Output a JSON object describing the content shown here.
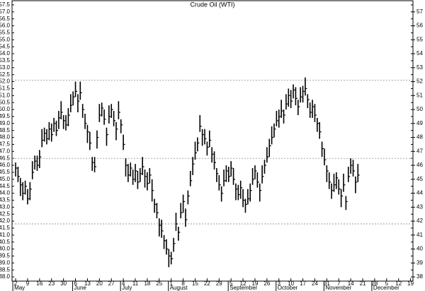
{
  "chart_data": {
    "type": "ohlc",
    "title": "Crude Oil (WTI)",
    "color": "#000000",
    "high": [
      46.2,
      45.9,
      45.1,
      44.8,
      44.9,
      44.3,
      44.8,
      46.3,
      46.7,
      46.7,
      47.1,
      48.6,
      48.7,
      48.6,
      49.1,
      49.0,
      49.4,
      49.2,
      49.9,
      50.6,
      49.6,
      49.6,
      50.1,
      51.1,
      51.3,
      52.0,
      51.1,
      52.0,
      50.4,
      49.7,
      48.9,
      48.4,
      46.6,
      46.6,
      48.5,
      50.4,
      50.5,
      50.0,
      48.7,
      50.3,
      50.4,
      49.9,
      49.1,
      50.6,
      49.3,
      48.2,
      46.5,
      46.1,
      46.2,
      45.7,
      46.1,
      45.6,
      45.8,
      46.6,
      45.7,
      45.5,
      45.8,
      45.0,
      43.6,
      43.3,
      42.2,
      42.1,
      41.0,
      40.7,
      40.0,
      39.8,
      40.8,
      42.6,
      41.6,
      43.3,
      43.9,
      42.9,
      44.2,
      45.6,
      46.6,
      47.7,
      48.0,
      49.6,
      48.6,
      48.6,
      47.7,
      48.5,
      47.3,
      47.0,
      45.8,
      45.3,
      44.5,
      45.7,
      46.0,
      45.9,
      46.3,
      45.8,
      44.7,
      44.6,
      44.9,
      44.3,
      43.6,
      44.3,
      44.7,
      45.8,
      46.0,
      45.5,
      44.7,
      46.0,
      46.4,
      47.3,
      47.9,
      48.8,
      49.0,
      49.9,
      50.0,
      50.7,
      50.0,
      51.1,
      51.5,
      51.4,
      51.8,
      51.6,
      50.7,
      51.6,
      51.7,
      52.3,
      51.1,
      50.5,
      50.7,
      50.4,
      49.4,
      49.1,
      47.7,
      47.2,
      46.0,
      45.5,
      44.7,
      45.4,
      45.5,
      45.0,
      44.3,
      45.4,
      43.8,
      45.9,
      46.5,
      46.4,
      45.2,
      46.1
    ],
    "low": [
      45.2,
      44.8,
      43.8,
      43.5,
      43.9,
      43.2,
      43.5,
      45.0,
      45.7,
      45.6,
      45.8,
      47.3,
      47.7,
      47.5,
      47.8,
      47.7,
      48.4,
      48.1,
      48.6,
      49.3,
      48.6,
      48.5,
      48.8,
      49.8,
      50.3,
      50.9,
      49.8,
      50.7,
      49.4,
      48.6,
      47.6,
      47.1,
      45.6,
      45.5,
      47.2,
      49.1,
      49.5,
      48.9,
      47.4,
      49.0,
      49.4,
      48.8,
      47.8,
      49.3,
      48.3,
      47.1,
      45.2,
      44.8,
      45.2,
      44.6,
      44.8,
      44.3,
      44.8,
      45.3,
      44.4,
      44.2,
      44.7,
      43.4,
      42.6,
      42.2,
      40.9,
      40.8,
      40.0,
      39.6,
      38.7,
      38.9,
      39.8,
      41.3,
      40.6,
      42.2,
      42.6,
      41.6,
      43.2,
      44.5,
      45.3,
      46.4,
      47.0,
      48.4,
      47.4,
      47.5,
      46.7,
      47.3,
      46.2,
      45.7,
      44.8,
      44.2,
      43.4,
      44.5,
      44.8,
      44.8,
      45.2,
      44.6,
      43.5,
      43.5,
      43.6,
      43.0,
      42.6,
      43.2,
      43.4,
      44.6,
      45.0,
      44.4,
      43.4,
      44.7,
      45.4,
      46.2,
      46.6,
      47.5,
      48.0,
      48.8,
      48.7,
      49.4,
      49.0,
      50.0,
      50.2,
      50.1,
      50.8,
      50.3,
      49.6,
      50.5,
      50.5,
      51.0,
      50.1,
      49.4,
      49.4,
      49.1,
      48.4,
      47.9,
      46.6,
      46.0,
      44.8,
      44.3,
      43.6,
      44.1,
      44.3,
      43.9,
      43.0,
      44.1,
      42.8,
      44.8,
      45.4,
      45.2,
      44.0,
      44.8
    ],
    "close": [
      45.8,
      45.2,
      44.6,
      44.0,
      44.5,
      43.6,
      44.3,
      45.5,
      46.3,
      46.0,
      46.6,
      47.8,
      48.3,
      47.9,
      48.6,
      48.2,
      49.0,
      48.5,
      49.4,
      49.8,
      49.2,
      48.9,
      49.6,
      50.3,
      50.9,
      51.3,
      50.6,
      51.2,
      50.0,
      49.0,
      48.4,
      47.6,
      46.2,
      45.9,
      48.0,
      49.6,
      50.1,
      49.3,
      48.2,
      49.5,
      50.0,
      49.2,
      48.6,
      49.8,
      48.9,
      47.5,
      46.0,
      45.3,
      45.8,
      45.0,
      45.6,
      44.8,
      45.4,
      45.9,
      45.2,
      44.7,
      45.3,
      44.2,
      43.2,
      42.6,
      41.7,
      41.3,
      40.6,
      40.0,
      39.5,
      39.3,
      40.4,
      41.8,
      41.2,
      42.6,
      43.4,
      42.1,
      43.8,
      44.9,
      46.1,
      46.9,
      47.6,
      48.8,
      48.2,
      47.9,
      47.3,
      47.8,
      46.8,
      46.2,
      45.4,
      44.6,
      44.0,
      44.9,
      45.6,
      45.2,
      45.8,
      45.0,
      44.3,
      43.9,
      44.4,
      43.5,
      43.2,
      43.6,
      44.2,
      45.0,
      45.6,
      44.8,
      44.2,
      45.2,
      46.0,
      46.6,
      47.4,
      48.0,
      48.6,
      49.2,
      49.5,
      49.9,
      49.6,
      50.4,
      51.0,
      50.6,
      51.4,
      50.8,
      50.2,
      50.9,
      51.3,
      51.5,
      50.7,
      49.8,
      50.2,
      49.6,
      49.0,
      48.4,
      47.2,
      46.4,
      45.6,
      44.8,
      44.2,
      44.6,
      45.1,
      44.3,
      43.8,
      44.6,
      43.4,
      45.2,
      46.0,
      45.6,
      44.8,
      45.3
    ],
    "reference_lines": [
      52.1,
      46.5,
      41.8
    ],
    "xlim": [
      -1.5,
      166
    ],
    "xticks": [
      {
        "value": 0,
        "label": "2"
      },
      {
        "value": 5,
        "label": "9"
      },
      {
        "value": 10,
        "label": "16"
      },
      {
        "value": 15,
        "label": "23"
      },
      {
        "value": 20,
        "label": "30"
      },
      {
        "value": 25,
        "label": "6"
      },
      {
        "value": 30,
        "label": "13"
      },
      {
        "value": 35,
        "label": "20"
      },
      {
        "value": 40,
        "label": "27"
      },
      {
        "value": 45,
        "label": "4"
      },
      {
        "value": 50,
        "label": "11"
      },
      {
        "value": 55,
        "label": "18"
      },
      {
        "value": 60,
        "label": "25"
      },
      {
        "value": 65,
        "label": "1"
      },
      {
        "value": 70,
        "label": "8"
      },
      {
        "value": 75,
        "label": "15"
      },
      {
        "value": 80,
        "label": "22"
      },
      {
        "value": 85,
        "label": "29"
      },
      {
        "value": 90,
        "label": "5"
      },
      {
        "value": 95,
        "label": "12"
      },
      {
        "value": 100,
        "label": "19"
      },
      {
        "value": 105,
        "label": "26"
      },
      {
        "value": 110,
        "label": "3"
      },
      {
        "value": 115,
        "label": "10"
      },
      {
        "value": 120,
        "label": "17"
      },
      {
        "value": 125,
        "label": "24"
      },
      {
        "value": 130,
        "label": "31"
      },
      {
        "value": 135,
        "label": "7"
      },
      {
        "value": 140,
        "label": "14"
      },
      {
        "value": 145,
        "label": "21"
      },
      {
        "value": 150,
        "label": "28"
      },
      {
        "value": 155,
        "label": "5"
      },
      {
        "value": 160,
        "label": "12"
      },
      {
        "value": 165,
        "label": "19"
      }
    ],
    "months": [
      {
        "value": 0,
        "label": "May"
      },
      {
        "value": 25,
        "label": "June"
      },
      {
        "value": 45,
        "label": "July"
      },
      {
        "value": 65,
        "label": "August"
      },
      {
        "value": 90,
        "label": "September"
      },
      {
        "value": 110,
        "label": "October"
      },
      {
        "value": 130,
        "label": "November"
      },
      {
        "value": 150,
        "label": "December"
      }
    ],
    "ylim": [
      37.7,
      57.8
    ],
    "yticks": [
      {
        "value": 38,
        "label": "38.0"
      },
      38.5,
      {
        "value": 39,
        "label": "39.0"
      },
      39.5,
      {
        "value": 40,
        "label": "40.0"
      },
      40.5,
      {
        "value": 41,
        "label": "41.0"
      },
      41.5,
      {
        "value": 42,
        "label": "42.0"
      },
      42.5,
      {
        "value": 43,
        "label": "43.0"
      },
      43.5,
      {
        "value": 44,
        "label": "44.0"
      },
      44.5,
      {
        "value": 45,
        "label": "45.0"
      },
      45.5,
      {
        "value": 46,
        "label": "46.0"
      },
      46.5,
      {
        "value": 47,
        "label": "47.0"
      },
      47.5,
      {
        "value": 48,
        "label": "48.0"
      },
      48.5,
      {
        "value": 49,
        "label": "49.0"
      },
      49.5,
      {
        "value": 50,
        "label": "50.0"
      },
      50.5,
      {
        "value": 51,
        "label": "51.0"
      },
      51.5,
      {
        "value": 52,
        "label": "52.0"
      },
      52.5,
      {
        "value": 53,
        "label": "53.0"
      },
      53.5,
      {
        "value": 54,
        "label": "54.0"
      },
      54.5,
      {
        "value": 55,
        "label": "55.0"
      },
      55.5,
      {
        "value": 56,
        "label": "56.0"
      },
      56.5,
      {
        "value": 57,
        "label": "57.0"
      },
      57.5
    ],
    "y2lim": [
      37.7,
      57.8
    ],
    "y2ticks": [
      38,
      39,
      40,
      41,
      42,
      43,
      44,
      45,
      46,
      47,
      48,
      49,
      50,
      51,
      52,
      53,
      54,
      55,
      56,
      57
    ]
  }
}
